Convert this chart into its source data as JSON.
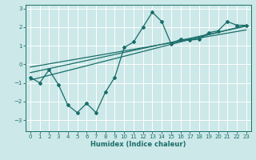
{
  "title": "",
  "xlabel": "Humidex (Indice chaleur)",
  "bg_color": "#cce8e8",
  "grid_color": "#ffffff",
  "line_color": "#1a6e6a",
  "xlim": [
    -0.5,
    23.5
  ],
  "ylim": [
    -3.6,
    3.2
  ],
  "xticks": [
    0,
    1,
    2,
    3,
    4,
    5,
    6,
    7,
    8,
    9,
    10,
    11,
    12,
    13,
    14,
    15,
    16,
    17,
    18,
    19,
    20,
    21,
    22,
    23
  ],
  "yticks": [
    -3,
    -2,
    -1,
    0,
    1,
    2,
    3
  ],
  "main_x": [
    0,
    1,
    2,
    3,
    4,
    5,
    6,
    7,
    8,
    9,
    10,
    11,
    12,
    13,
    14,
    15,
    16,
    17,
    18,
    19,
    20,
    21,
    22,
    23
  ],
  "main_y": [
    -0.7,
    -1.0,
    -0.3,
    -1.1,
    -2.2,
    -2.6,
    -2.1,
    -2.6,
    -1.5,
    -0.7,
    0.9,
    1.2,
    2.0,
    2.8,
    2.3,
    1.1,
    1.35,
    1.3,
    1.35,
    1.7,
    1.8,
    2.3,
    2.1,
    2.1
  ],
  "trend1_x": [
    0,
    23
  ],
  "trend1_y": [
    -0.85,
    2.1
  ],
  "trend2_x": [
    0,
    23
  ],
  "trend2_y": [
    -0.45,
    2.05
  ],
  "trend3_x": [
    0,
    23
  ],
  "trend3_y": [
    -0.15,
    1.85
  ],
  "tick_fontsize": 5.0,
  "xlabel_fontsize": 6.0,
  "marker_size": 2.0
}
